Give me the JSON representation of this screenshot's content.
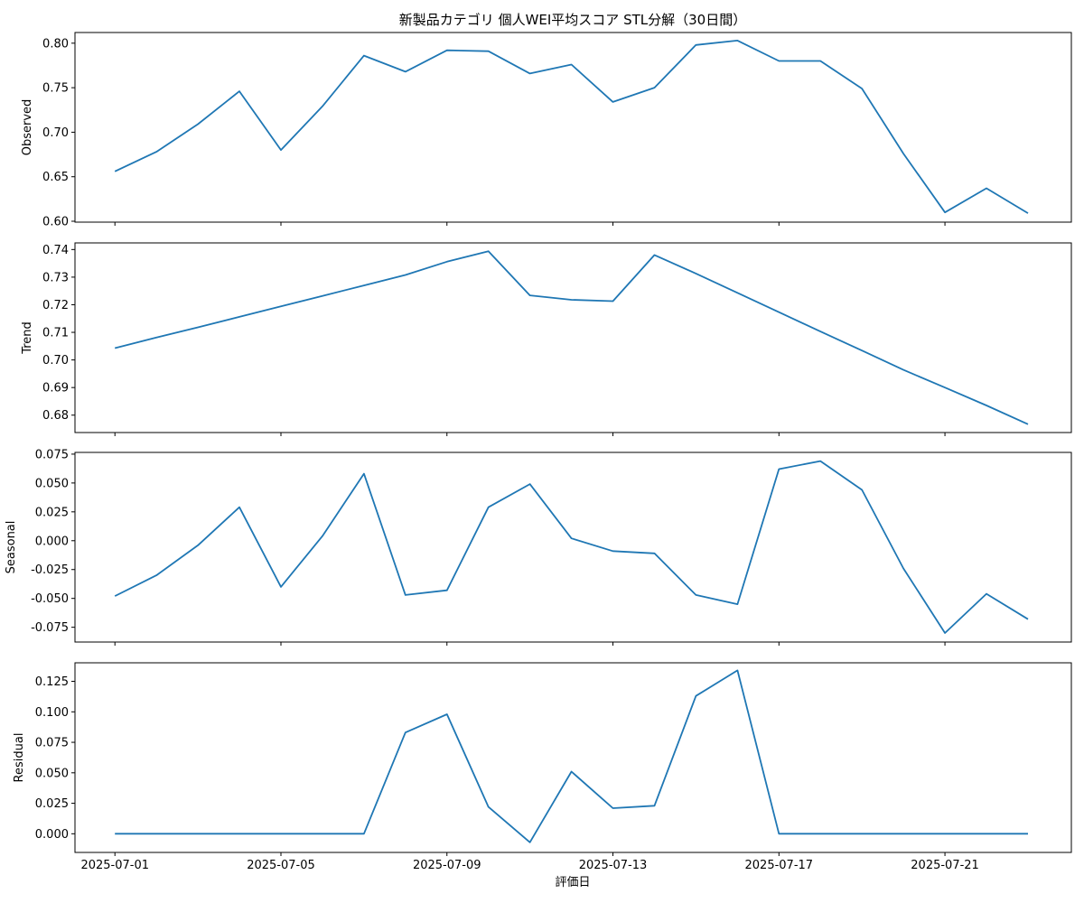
{
  "chart_data": {
    "type": "line",
    "title": "新製品カテゴリ 個人WEI平均スコア STL分解（30日間）",
    "xlabel": "評価日",
    "x": [
      "2025-07-01",
      "2025-07-02",
      "2025-07-03",
      "2025-07-04",
      "2025-07-05",
      "2025-07-06",
      "2025-07-07",
      "2025-07-08",
      "2025-07-09",
      "2025-07-10",
      "2025-07-11",
      "2025-07-12",
      "2025-07-13",
      "2025-07-14",
      "2025-07-15",
      "2025-07-16",
      "2025-07-17",
      "2025-07-18",
      "2025-07-19",
      "2025-07-20",
      "2025-07-21",
      "2025-07-22",
      "2025-07-23"
    ],
    "xlim": [
      "2025-06-30T00:54",
      "2025-07-24T01:06"
    ],
    "xticks": [
      "2025-07-01",
      "2025-07-05",
      "2025-07-09",
      "2025-07-13",
      "2025-07-17",
      "2025-07-21"
    ],
    "line_color": "#1f77b4",
    "grid": false,
    "legend": "none",
    "panels": [
      {
        "ylabel": "Observed",
        "ylim": [
          0.599,
          0.812
        ],
        "yticks": [
          "0.60",
          "0.65",
          "0.70",
          "0.75",
          "0.80"
        ],
        "values": [
          0.656,
          0.678,
          0.709,
          0.746,
          0.68,
          0.729,
          0.786,
          0.768,
          0.792,
          0.791,
          0.766,
          0.776,
          0.734,
          0.75,
          0.798,
          0.803,
          0.78,
          0.78,
          0.749,
          0.676,
          0.61,
          0.637,
          0.609
        ]
      },
      {
        "ylabel": "Trend",
        "ylim": [
          0.6737,
          0.7424
        ],
        "yticks": [
          "0.68",
          "0.69",
          "0.70",
          "0.71",
          "0.72",
          "0.73",
          "0.74"
        ],
        "values": [
          0.7043,
          0.7081,
          0.7118,
          0.7156,
          0.7194,
          0.7232,
          0.727,
          0.7308,
          0.7356,
          0.7394,
          0.7234,
          0.7218,
          0.7213,
          0.738,
          0.7313,
          0.7243,
          0.7173,
          0.7103,
          0.7034,
          0.6964,
          0.69,
          0.6835,
          0.6767
        ]
      },
      {
        "ylabel": "Seasonal",
        "ylim": [
          -0.0878,
          0.0765
        ],
        "yticks": [
          "-0.075",
          "-0.050",
          "-0.025",
          "0.000",
          "0.025",
          "0.050",
          "0.075"
        ],
        "values": [
          -0.048,
          -0.03,
          -0.004,
          0.029,
          -0.04,
          0.004,
          0.058,
          -0.047,
          -0.043,
          0.029,
          0.049,
          0.002,
          -0.009,
          -0.011,
          -0.047,
          -0.055,
          0.062,
          0.069,
          0.044,
          -0.024,
          -0.08,
          -0.046,
          -0.068
        ]
      },
      {
        "ylabel": "Residual",
        "ylim": [
          -0.0153,
          0.1402
        ],
        "yticks": [
          "0.000",
          "0.025",
          "0.050",
          "0.075",
          "0.100",
          "0.125"
        ],
        "values": [
          0,
          0,
          0,
          0,
          0,
          0,
          0,
          0.083,
          0.098,
          0.022,
          -0.007,
          0.051,
          0.021,
          0.023,
          0.113,
          0.134,
          0,
          0,
          0,
          0,
          0,
          0,
          0
        ]
      }
    ]
  }
}
